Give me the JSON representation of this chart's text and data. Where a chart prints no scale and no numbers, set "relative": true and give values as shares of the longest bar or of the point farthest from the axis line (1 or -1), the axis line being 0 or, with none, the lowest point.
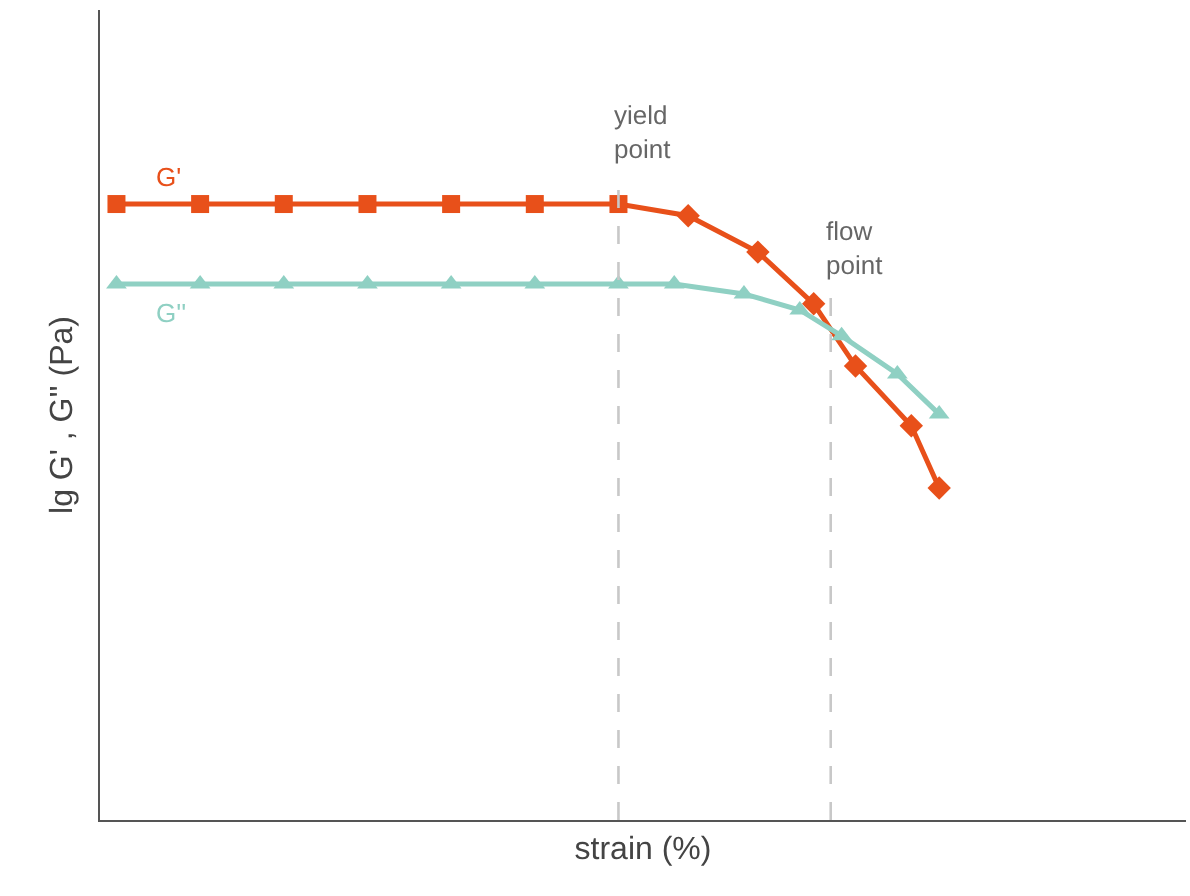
{
  "chart_data": {
    "type": "line",
    "xlabel": "strain (%)",
    "ylabel": "lg G' , G'' (Pa)",
    "relative": true,
    "tick_labels": false,
    "line_style": "solid",
    "categories": [
      null,
      null,
      null,
      null,
      null,
      null,
      null,
      null,
      null,
      null,
      null,
      null,
      null,
      null,
      null,
      null,
      null,
      null,
      null,
      null,
      null,
      null,
      null,
      null,
      null,
      null,
      null,
      null,
      null,
      null,
      null,
      null,
      null,
      null,
      null,
      null,
      null,
      null,
      null,
      null,
      null,
      null,
      null,
      null,
      null,
      null,
      null,
      null,
      null,
      null,
      null,
      null,
      null,
      null,
      null,
      null,
      null,
      null,
      null,
      null
    ],
    "series": [
      {
        "name": "G'",
        "color": "#e8501a",
        "marker": [
          "square",
          "square",
          "square",
          "square",
          "square",
          "square",
          "square",
          "diamond",
          "diamond",
          "diamond",
          "diamond",
          "diamond",
          "diamond"
        ],
        "values": [
          1,
          null,
          null,
          null,
          null,
          null,
          1,
          null,
          null,
          null,
          null,
          null,
          1,
          null,
          null,
          null,
          null,
          null,
          1,
          null,
          null,
          null,
          null,
          null,
          1,
          null,
          null,
          null,
          null,
          null,
          1,
          null,
          null,
          null,
          null,
          null,
          1,
          null,
          null,
          null,
          null,
          0.981,
          null,
          null,
          null,
          null,
          0.922,
          null,
          null,
          null,
          0.838,
          null,
          null,
          0.737,
          null,
          null,
          null,
          0.64,
          null,
          0.539
        ]
      },
      {
        "name": "G''",
        "color": "#8fd0c3",
        "marker": "triangle",
        "values": [
          0.87,
          null,
          null,
          null,
          null,
          null,
          0.87,
          null,
          null,
          null,
          null,
          null,
          0.87,
          null,
          null,
          null,
          null,
          null,
          0.87,
          null,
          null,
          null,
          null,
          null,
          0.87,
          null,
          null,
          null,
          null,
          null,
          0.87,
          null,
          null,
          null,
          null,
          null,
          0.87,
          null,
          null,
          null,
          0.87,
          null,
          null,
          null,
          null,
          0.854,
          null,
          null,
          null,
          0.828,
          null,
          null,
          0.786,
          null,
          null,
          null,
          0.724,
          null,
          null,
          0.659
        ]
      }
    ],
    "annotations": [
      "yield point",
      "flow point"
    ]
  }
}
